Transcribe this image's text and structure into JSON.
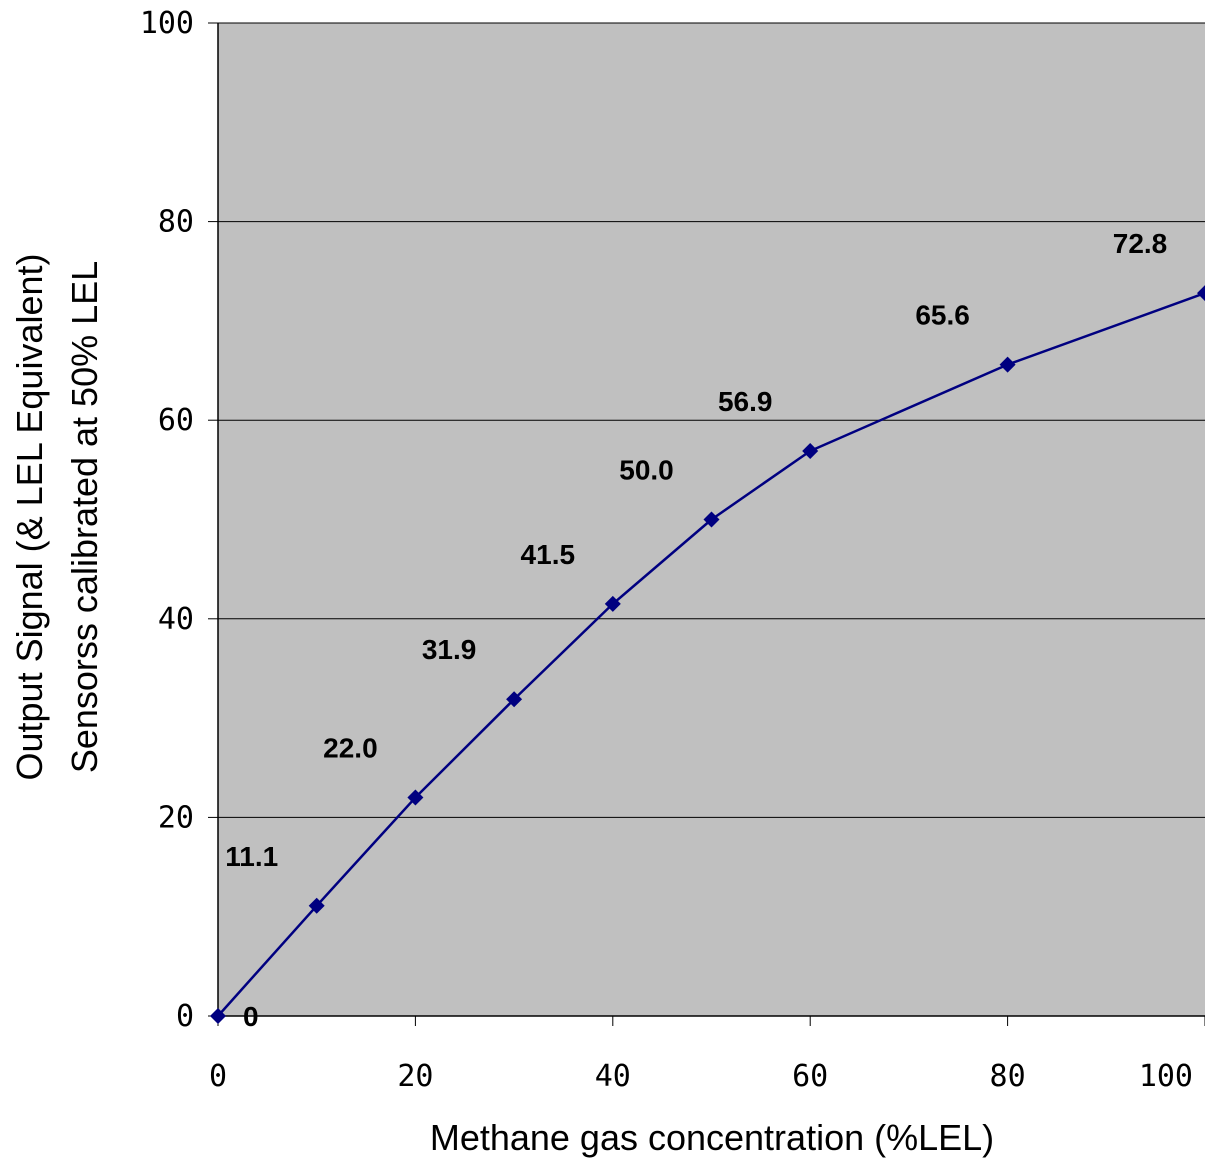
{
  "chart_data": {
    "type": "line",
    "title": "",
    "xlabel": "Methane gas concentration (%LEL)",
    "ylabel_lines": [
      "Output Signal (& LEL Equivalent)",
      "Sensorss calibrated at 50% LEL"
    ],
    "x": [
      0,
      10,
      20,
      30,
      40,
      50,
      60,
      80,
      100
    ],
    "series": [
      {
        "values": [
          0,
          11.1,
          22.0,
          31.9,
          41.5,
          50.0,
          56.9,
          65.6,
          72.8
        ],
        "labels": [
          "0",
          "11.1",
          "22.0",
          "31.9",
          "41.5",
          "50.0",
          "56.9",
          "65.6",
          "72.8"
        ],
        "color": "#000080"
      }
    ],
    "xlim": [
      0,
      100
    ],
    "ylim": [
      0,
      100
    ],
    "xticks": [
      "0",
      "20",
      "40",
      "60",
      "80",
      "100"
    ],
    "yticks": [
      "0",
      "20",
      "40",
      "60",
      "80",
      "100"
    ],
    "grid": "horizontal",
    "legend": "none",
    "colors": {
      "plot_background": "#c0c0c0",
      "gridline": "#000000",
      "series_line": "#000080"
    }
  }
}
